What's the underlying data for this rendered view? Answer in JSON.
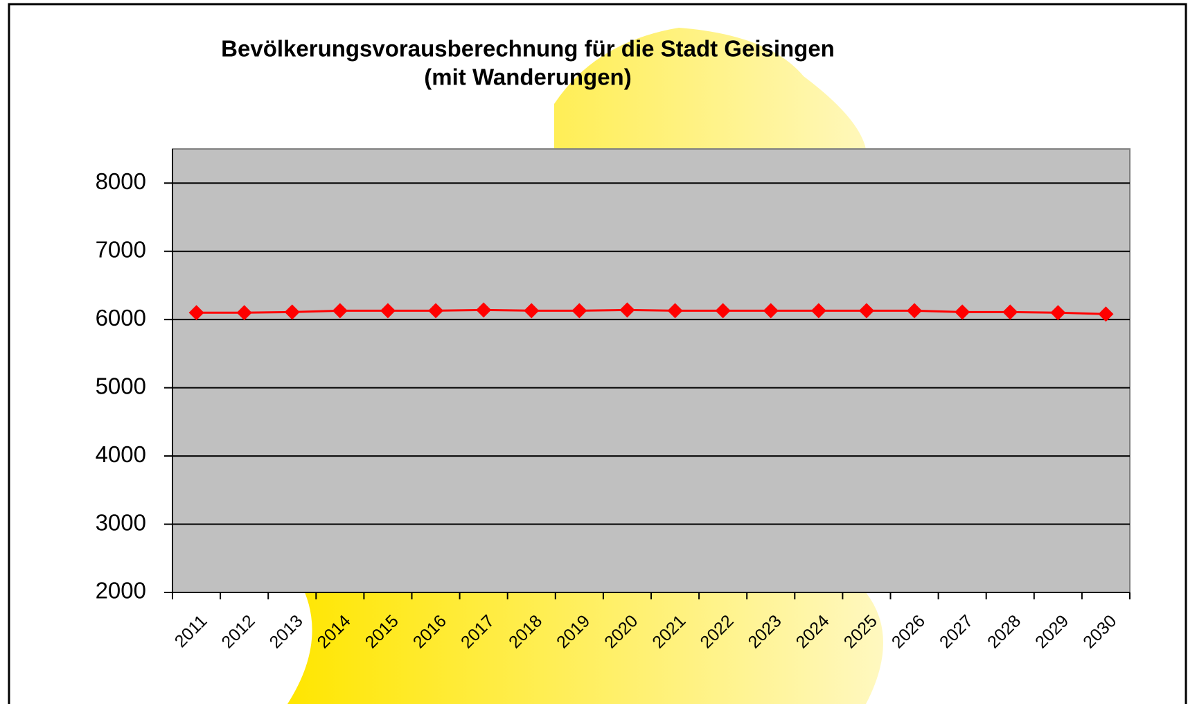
{
  "chart_data": {
    "type": "line",
    "title": [
      "Bevölkerungsvorausberechnung für die Stadt Geisingen",
      "(mit  Wanderungen)"
    ],
    "categories": [
      "2011",
      "2012",
      "2013",
      "2014",
      "2015",
      "2016",
      "2017",
      "2018",
      "2019",
      "2020",
      "2021",
      "2022",
      "2023",
      "2024",
      "2025",
      "2026",
      "2027",
      "2028",
      "2029",
      "2030"
    ],
    "values": [
      6100,
      6100,
      6110,
      6130,
      6130,
      6130,
      6140,
      6130,
      6130,
      6140,
      6130,
      6130,
      6130,
      6130,
      6130,
      6130,
      6110,
      6110,
      6100,
      6080
    ],
    "color": "#ff0000",
    "ylim": [
      2000,
      8500
    ],
    "yticks": [
      2000,
      3000,
      4000,
      5000,
      6000,
      7000,
      8000
    ],
    "grid": true
  }
}
